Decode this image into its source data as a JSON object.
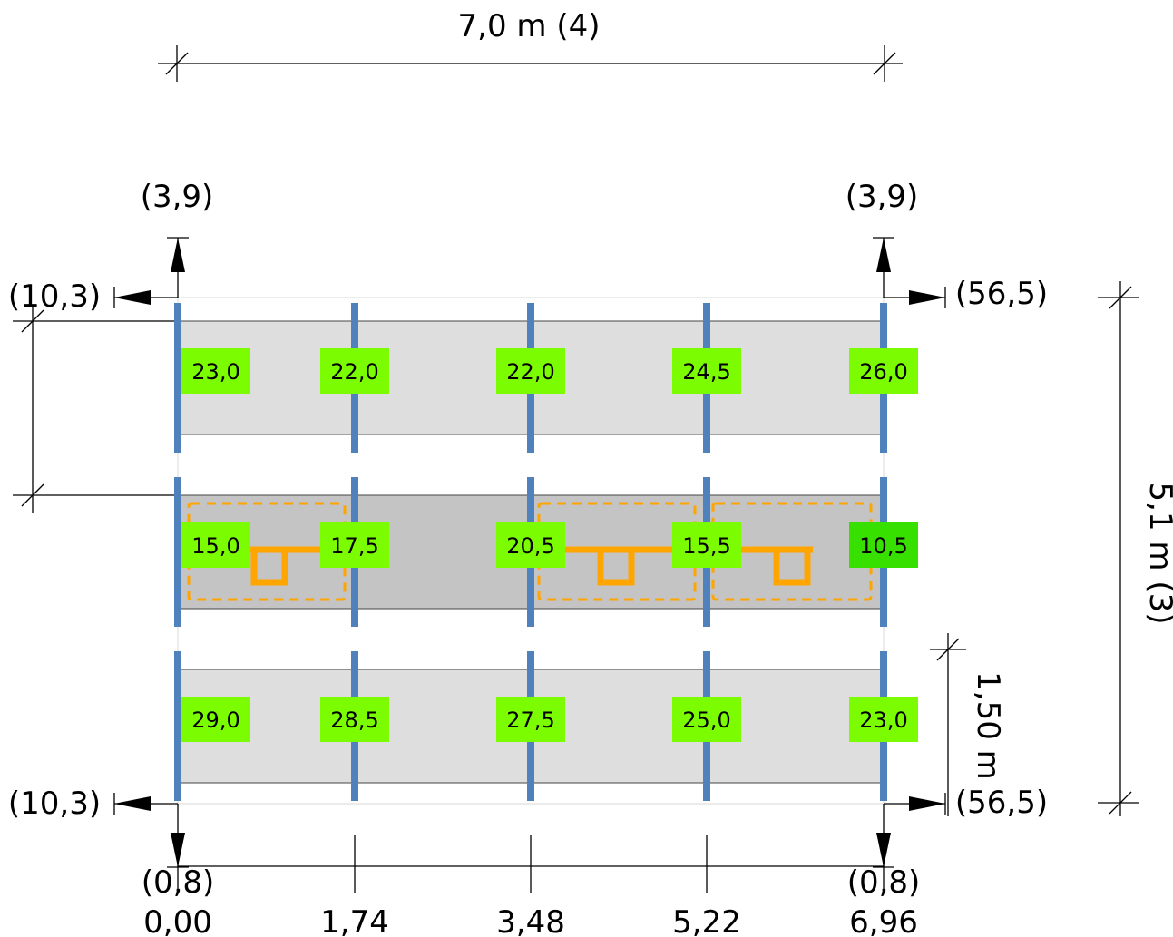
{
  "top_dimension": {
    "label": "7,0 m (4)"
  },
  "right_dimension": {
    "label": "5,1 m (3)"
  },
  "row_dimension": {
    "label": "1,50 m"
  },
  "left_dimension": {
    "label": ""
  },
  "overhangs": {
    "top_left": "(3,9)",
    "top_right": "(3,9)",
    "left_top": "(10,3)",
    "left_bottom": "(10,3)",
    "right_top": "(56,5)",
    "right_bottom": "(56,5)",
    "bottom_left": "(0,8)",
    "bottom_right": "(0,8)"
  },
  "x_positions": [
    "0,00",
    "1,74",
    "3,48",
    "5,22",
    "6,96"
  ],
  "rows": [
    {
      "shade": "light",
      "values": [
        "23,0",
        "22,0",
        "22,0",
        "24,5",
        "26,0"
      ]
    },
    {
      "shade": "dark",
      "values": [
        "15,0",
        "17,5",
        "20,5",
        "15,5",
        "10,5"
      ]
    },
    {
      "shade": "light",
      "values": [
        "29,0",
        "28,5",
        "27,5",
        "25,0",
        "23,0"
      ]
    }
  ],
  "colors": {
    "post": "#4f81bd",
    "label": "#7cfc00",
    "label_alt": "#38e000",
    "panel_light": "#dedede",
    "panel_dark": "#c4c4c4",
    "connector": "#ffa500"
  }
}
